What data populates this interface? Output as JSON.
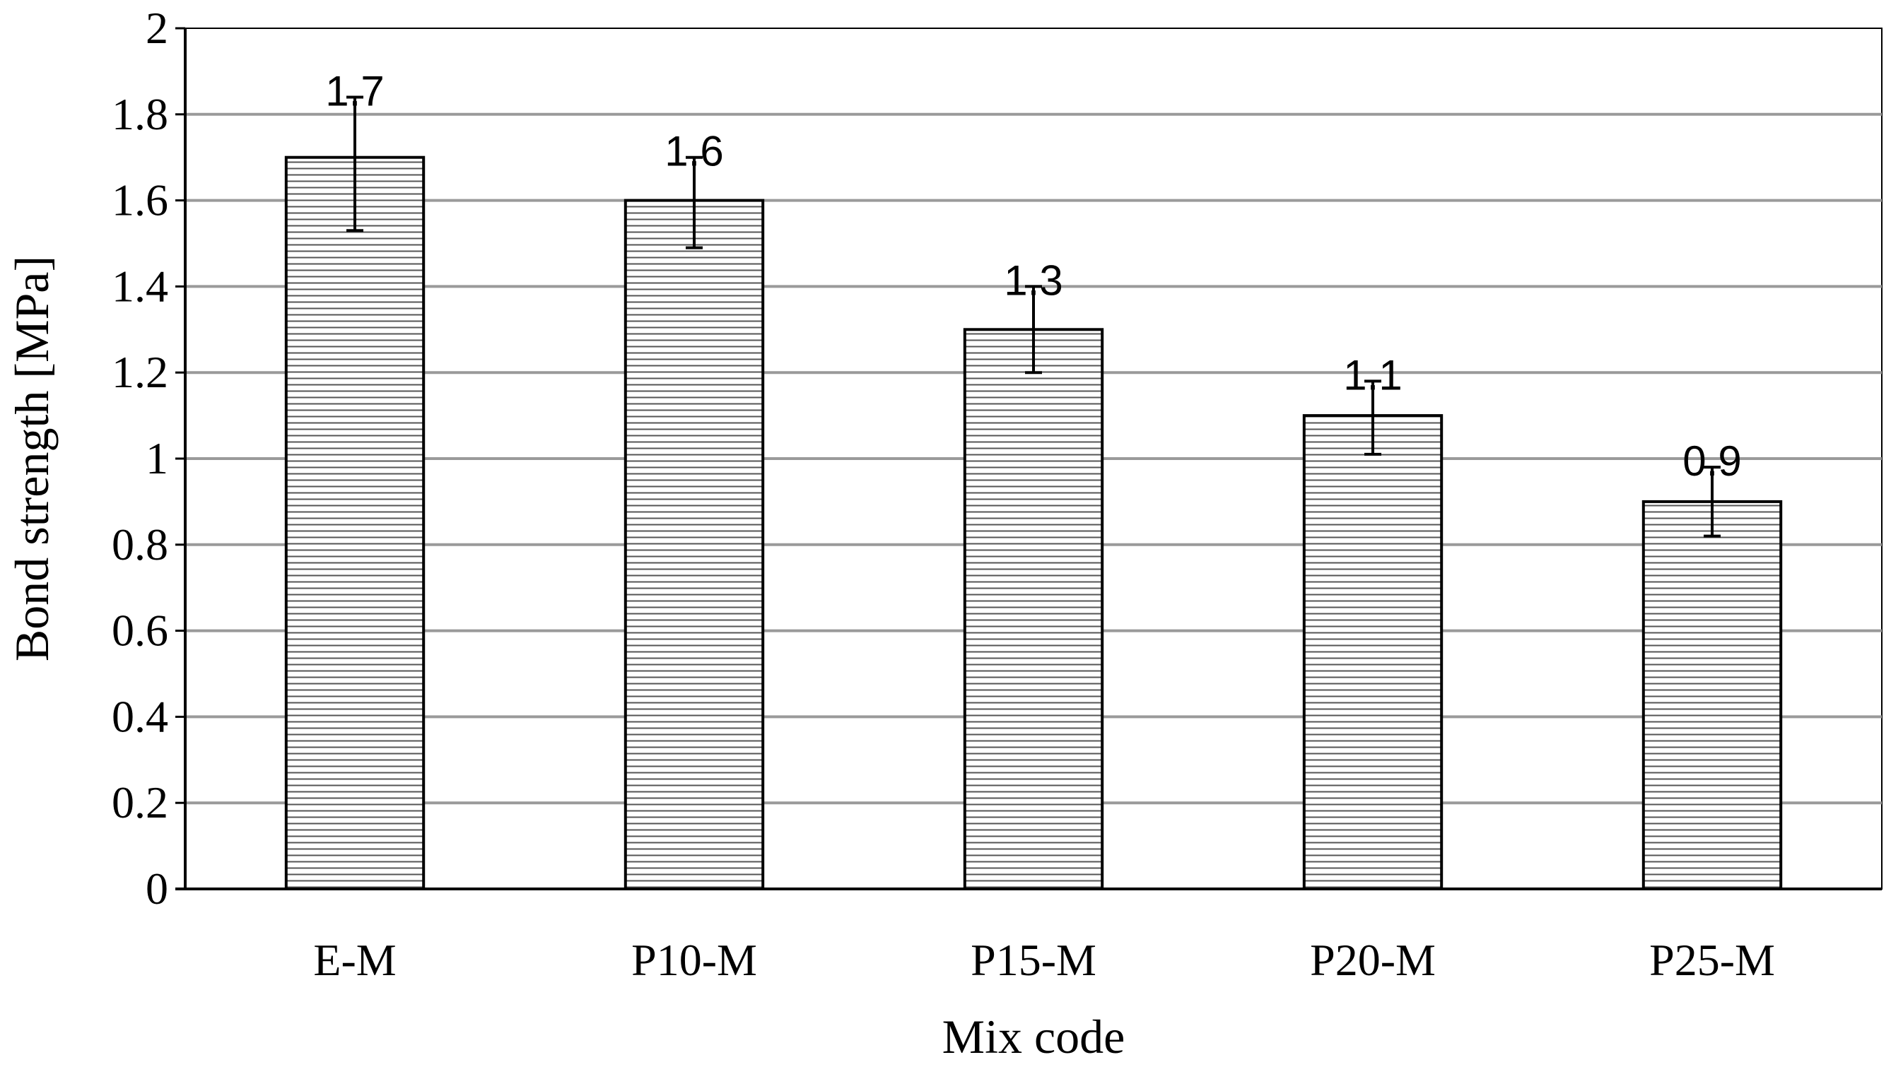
{
  "chart_data": {
    "type": "bar",
    "categories": [
      "E-M",
      "P10-M",
      "P15-M",
      "P20-M",
      "P25-M"
    ],
    "values": [
      1.7,
      1.6,
      1.3,
      1.1,
      0.9
    ],
    "error_low": [
      1.53,
      1.49,
      1.2,
      1.01,
      0.82
    ],
    "error_high": [
      1.84,
      1.7,
      1.4,
      1.18,
      0.98
    ],
    "data_labels": [
      "1.7",
      "1.6",
      "1.3",
      "1.1",
      "0.9"
    ],
    "xlabel": "Mix code",
    "ylabel": "Bond strength [MPa]",
    "ylim": [
      0,
      2
    ],
    "yticks": [
      0,
      0.2,
      0.4,
      0.6,
      0.8,
      1,
      1.2,
      1.4,
      1.6,
      1.8,
      2
    ],
    "ytick_labels": [
      "0",
      "0.2",
      "0.4",
      "0.6",
      "0.8",
      "1",
      "1.2",
      "1.4",
      "1.6",
      "1.8",
      "2"
    ],
    "grid": "horizontal",
    "legend": "none",
    "bar_pattern": "horizontal-hatch",
    "colors": {
      "bar_fill": "#ffffff",
      "bar_stroke": "#000000",
      "hatch": "#555555",
      "grid": "#9a9a9a"
    }
  }
}
